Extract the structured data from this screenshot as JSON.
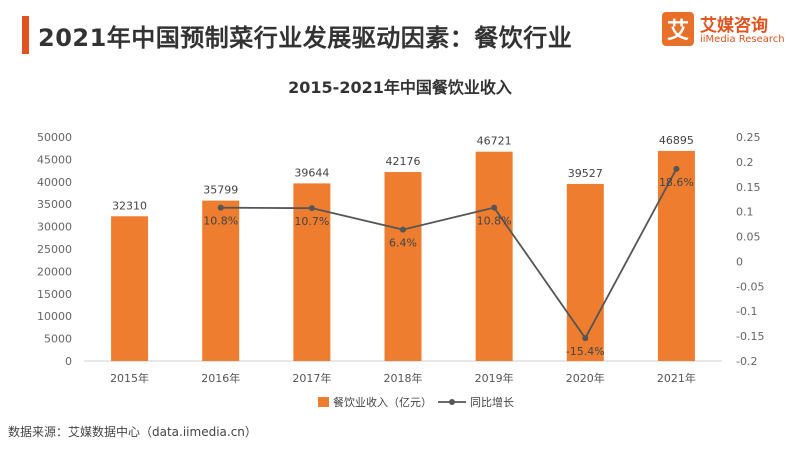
{
  "header": {
    "title": "2021年中国预制菜行业发展驱动因素：餐饮行业",
    "logo_mark": "艾",
    "logo_cn": "艾媒咨询",
    "logo_en": "iiMedia Research"
  },
  "chart_data": {
    "type": "bar+line",
    "title": "2015-2021年中国餐饮业收入",
    "categories": [
      "2015年",
      "2016年",
      "2017年",
      "2018年",
      "2019年",
      "2020年",
      "2021年"
    ],
    "series": [
      {
        "name": "餐饮业收入（亿元）",
        "type": "bar",
        "axis": "left",
        "values": [
          32310,
          35799,
          39644,
          42176,
          46721,
          39527,
          46895
        ],
        "labels": [
          "32310",
          "35799",
          "39644",
          "42176",
          "46721",
          "39527",
          "46895"
        ]
      },
      {
        "name": "同比增长",
        "type": "line",
        "axis": "right",
        "x": [
          "2016年",
          "2017年",
          "2018年",
          "2019年",
          "2020年",
          "2021年"
        ],
        "values": [
          0.108,
          0.107,
          0.064,
          0.108,
          -0.154,
          0.186
        ],
        "labels": [
          "10.8%",
          "10.7%",
          "6.4%",
          "10.8%",
          "-15.4%",
          "18.6%"
        ]
      }
    ],
    "y_left": {
      "ylim": [
        0,
        50000
      ],
      "ticks": [
        "0",
        "5000",
        "10000",
        "15000",
        "20000",
        "25000",
        "30000",
        "35000",
        "40000",
        "45000",
        "50000"
      ]
    },
    "y_right": {
      "ylim": [
        -0.2,
        0.25
      ],
      "ticks": [
        "-0.2",
        "-0.15",
        "-0.1",
        "-0.05",
        "0",
        "0.05",
        "0.1",
        "0.15",
        "0.2",
        "0.25"
      ]
    },
    "grid": false,
    "legend_position": "bottom",
    "colors": {
      "bar": "#ee7d2f",
      "line": "#555555"
    }
  },
  "footer": {
    "source": "数据来源：艾媒数据中心（data.iimedia.cn）"
  }
}
